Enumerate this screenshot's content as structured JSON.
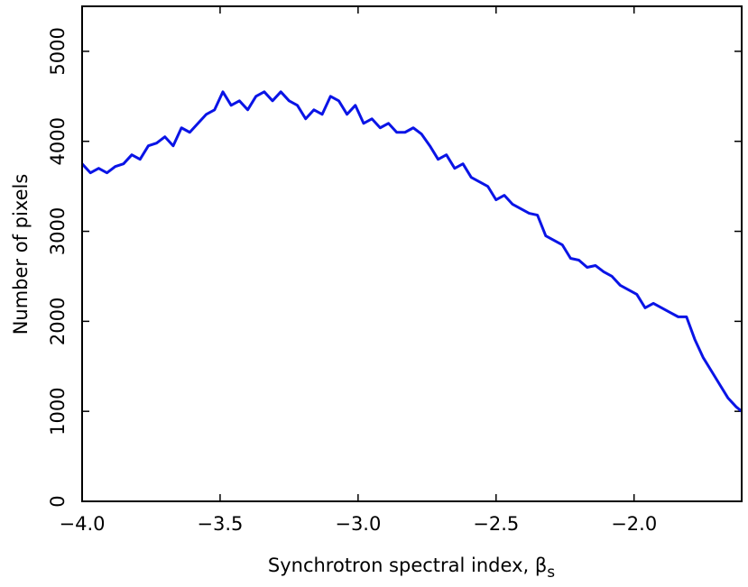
{
  "chart_data": {
    "type": "line",
    "x_label": "Synchrotron spectral index, β",
    "x_label_subscript": "s",
    "y_label": "Number of pixels",
    "x": [
      -4.0,
      -3.97,
      -3.94,
      -3.91,
      -3.88,
      -3.85,
      -3.82,
      -3.79,
      -3.76,
      -3.73,
      -3.7,
      -3.67,
      -3.64,
      -3.61,
      -3.58,
      -3.55,
      -3.52,
      -3.49,
      -3.46,
      -3.43,
      -3.4,
      -3.37,
      -3.34,
      -3.31,
      -3.28,
      -3.25,
      -3.22,
      -3.19,
      -3.16,
      -3.13,
      -3.1,
      -3.07,
      -3.04,
      -3.01,
      -2.98,
      -2.95,
      -2.92,
      -2.89,
      -2.86,
      -2.83,
      -2.8,
      -2.77,
      -2.74,
      -2.71,
      -2.68,
      -2.65,
      -2.62,
      -2.59,
      -2.56,
      -2.53,
      -2.5,
      -2.47,
      -2.44,
      -2.41,
      -2.38,
      -2.35,
      -2.32,
      -2.29,
      -2.26,
      -2.23,
      -2.2,
      -2.17,
      -2.14,
      -2.11,
      -2.08,
      -2.05,
      -2.02,
      -1.99,
      -1.96,
      -1.93,
      -1.9,
      -1.87,
      -1.84,
      -1.81,
      -1.78,
      -1.75,
      -1.72,
      -1.69,
      -1.66,
      -1.63,
      -1.61
    ],
    "series": [
      {
        "color": "#0a14e6",
        "values": [
          3750,
          3650,
          3700,
          3650,
          3720,
          3750,
          3850,
          3800,
          3950,
          3980,
          4050,
          3950,
          4150,
          4100,
          4200,
          4300,
          4350,
          4550,
          4400,
          4450,
          4350,
          4500,
          4550,
          4450,
          4550,
          4450,
          4400,
          4250,
          4350,
          4300,
          4500,
          4450,
          4300,
          4400,
          4200,
          4250,
          4150,
          4200,
          4100,
          4100,
          4150,
          4080,
          3950,
          3800,
          3850,
          3700,
          3750,
          3600,
          3550,
          3500,
          3350,
          3400,
          3300,
          3250,
          3200,
          3180,
          2950,
          2900,
          2850,
          2700,
          2680,
          2600,
          2620,
          2550,
          2500,
          2400,
          2350,
          2300,
          2150,
          2200,
          2150,
          2100,
          2050,
          2050,
          1800,
          1600,
          1450,
          1300,
          1150,
          1050,
          1000
        ]
      }
    ],
    "xlim": [
      -4.0,
      -1.61
    ],
    "xticks": [
      {
        "value": -4.0,
        "label": "−4.0"
      },
      {
        "value": -3.5,
        "label": "−3.5"
      },
      {
        "value": -3.0,
        "label": "−3.0"
      },
      {
        "value": -2.5,
        "label": "−2.5"
      },
      {
        "value": -2.0,
        "label": "−2.0"
      }
    ],
    "ylim": [
      0,
      5500
    ],
    "yticks": [
      0,
      1000,
      2000,
      3000,
      4000,
      5000
    ]
  }
}
